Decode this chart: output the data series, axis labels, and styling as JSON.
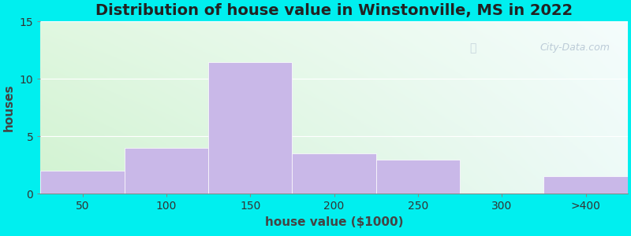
{
  "title": "Distribution of house value in Winstonville, MS in 2022",
  "xlabel": "house value ($1000)",
  "ylabel": "houses",
  "bar_labels": [
    "50",
    "100",
    "150",
    "200",
    "250",
    "300",
    ">400"
  ],
  "bar_heights": [
    2,
    4,
    11.5,
    3.5,
    3,
    0,
    1.5
  ],
  "bar_color": "#C9B8E8",
  "bar_edgecolor": "#FFFFFF",
  "ylim": [
    0,
    15
  ],
  "yticks": [
    0,
    5,
    10,
    15
  ],
  "figure_bg": "#00EFEF",
  "title_fontsize": 14,
  "label_fontsize": 11,
  "tick_fontsize": 10,
  "watermark": "City-Data.com",
  "gradient_topleft": [
    0.88,
    0.97,
    0.88
  ],
  "gradient_topright": [
    0.96,
    0.99,
    0.99
  ],
  "gradient_bottomleft": [
    0.82,
    0.95,
    0.82
  ],
  "gradient_bottomright": [
    0.93,
    0.98,
    0.97
  ]
}
